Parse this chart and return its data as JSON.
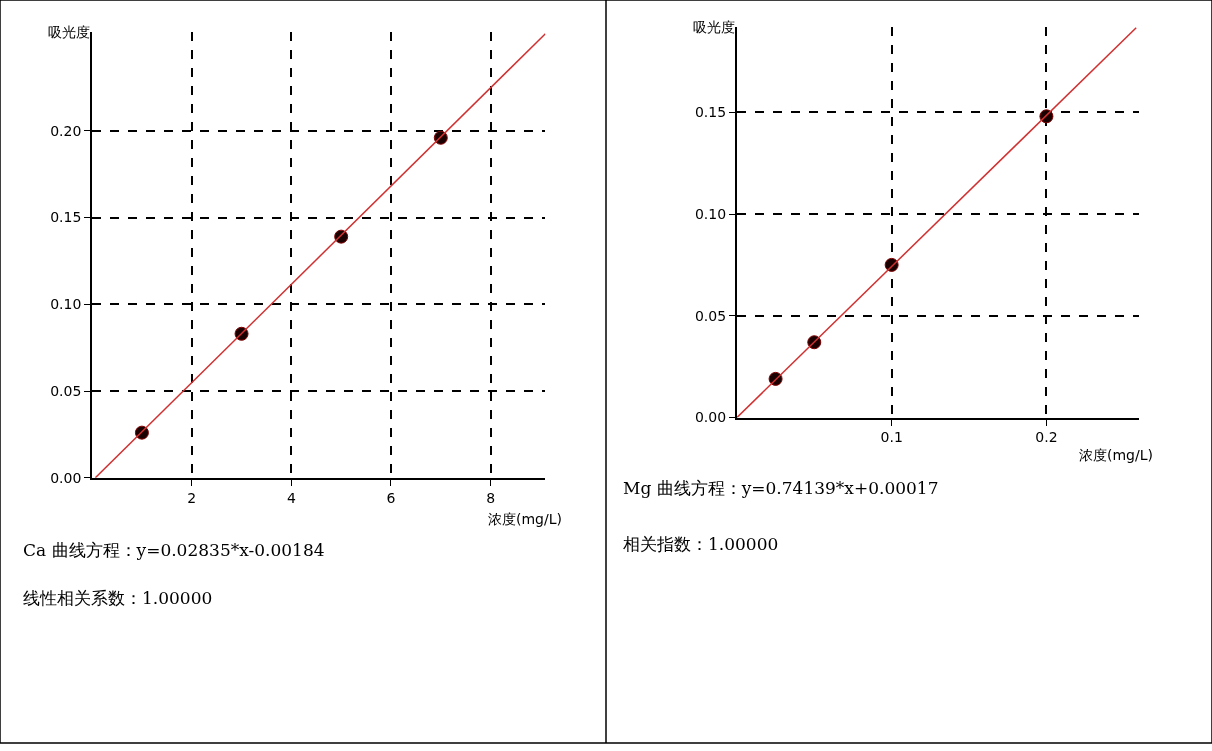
{
  "chart_data": [
    {
      "type": "scatter",
      "xlabel": "浓度(mg/L)",
      "ylabel": "吸光度",
      "marker": "circle",
      "grid": true,
      "xlim": [
        0,
        9.1
      ],
      "ylim": [
        0,
        0.257
      ],
      "xticks": [
        2,
        4,
        6,
        8
      ],
      "yticks": [
        {
          "value": 0,
          "label": "0.00"
        },
        {
          "value": 0.05,
          "label": "0.05"
        },
        {
          "value": 0.1,
          "label": "0.10"
        },
        {
          "value": 0.15,
          "label": "0.15"
        },
        {
          "value": 0.2,
          "label": "0.20"
        }
      ],
      "series": [
        {
          "type": "scatter",
          "color": "#1a0000",
          "x": [
            1,
            3,
            5,
            7
          ],
          "values": [
            0.026,
            0.083,
            0.139,
            0.196
          ]
        },
        {
          "type": "line",
          "marker": "none",
          "line_style": "solid",
          "color": "#d03030",
          "x": [
            0.065,
            9.1
          ],
          "values": [
            0,
            0.256
          ]
        }
      ],
      "annotations": [
        "Ca 曲线方程：y=0.02835*x-0.00184",
        "线性相关系数：1.00000"
      ]
    },
    {
      "type": "scatter",
      "xlabel": "浓度(mg/L)",
      "ylabel": "吸光度",
      "marker": "circle",
      "grid": true,
      "xlim": [
        0,
        0.26
      ],
      "ylim": [
        0,
        0.192
      ],
      "xticks": [
        0.1,
        0.2
      ],
      "yticks": [
        {
          "value": 0,
          "label": "0.00"
        },
        {
          "value": 0.05,
          "label": "0.05"
        },
        {
          "value": 0.1,
          "label": "0.10"
        },
        {
          "value": 0.15,
          "label": "0.15"
        }
      ],
      "series": [
        {
          "type": "scatter",
          "color": "#1a0000",
          "x": [
            0.025,
            0.05,
            0.1,
            0.2
          ],
          "values": [
            0.019,
            0.037,
            0.075,
            0.148
          ]
        },
        {
          "type": "line",
          "marker": "none",
          "line_style": "solid",
          "color": "#d03030",
          "x": [
            0,
            0.258
          ],
          "values": [
            0,
            0.1915
          ]
        }
      ],
      "annotations": [
        "Mg 曲线方程：y=0.74139*x+0.00017",
        "相关指数：1.00000"
      ]
    }
  ]
}
